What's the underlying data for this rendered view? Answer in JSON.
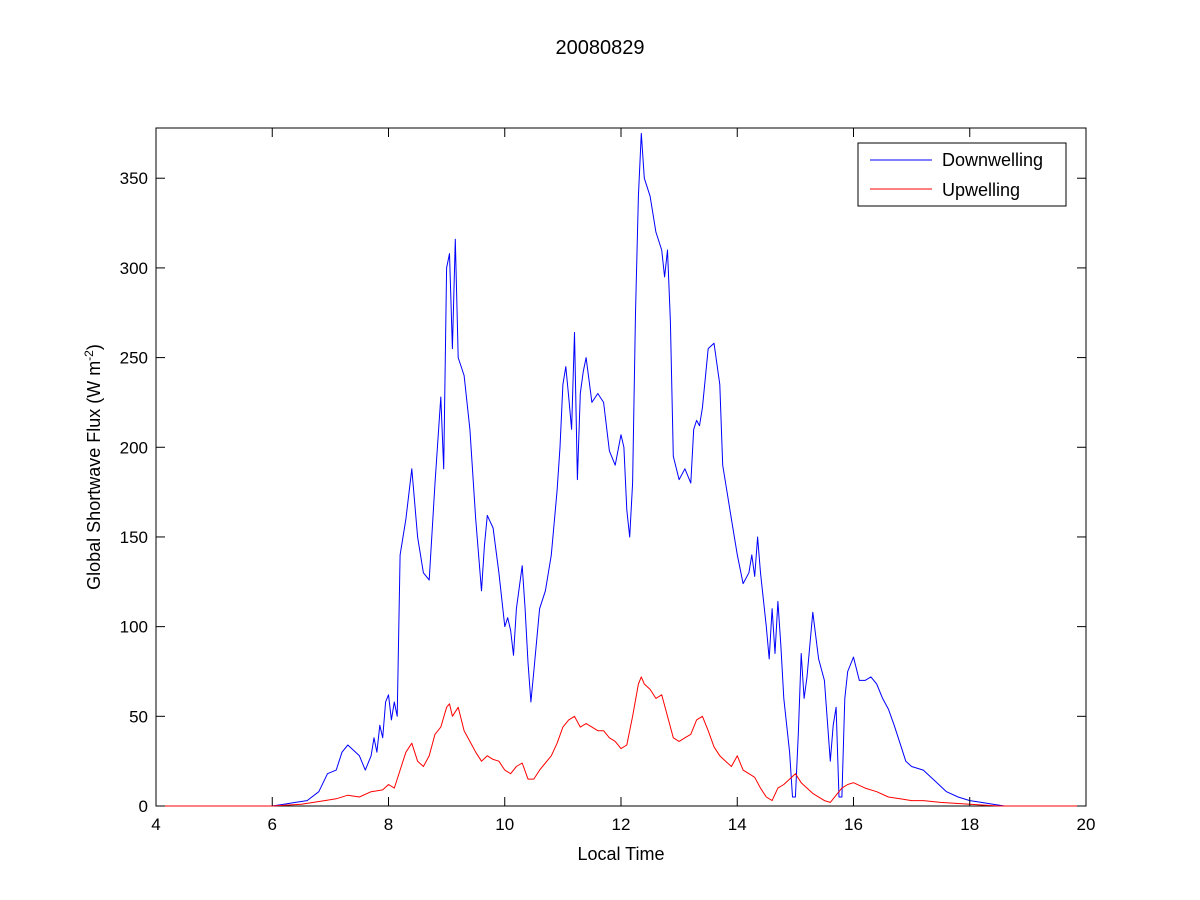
{
  "chart_data": {
    "type": "line",
    "title": "20080829",
    "xlabel": "Local Time",
    "ylabel": {
      "main": "Global Shortwave Flux (W m",
      "superscript": "-2",
      "close": ")"
    },
    "xlim": [
      4,
      20
    ],
    "ylim": [
      0,
      378
    ],
    "xticks": [
      4,
      6,
      8,
      10,
      12,
      14,
      16,
      18,
      20
    ],
    "yticks": [
      0,
      50,
      100,
      150,
      200,
      250,
      300,
      350
    ],
    "grid": false,
    "legend_position": "top-right",
    "series": [
      {
        "name": "Downwelling",
        "color": "#0000ff",
        "points": [
          [
            4.0,
            0
          ],
          [
            5.0,
            0
          ],
          [
            6.0,
            0
          ],
          [
            6.2,
            1
          ],
          [
            6.4,
            2
          ],
          [
            6.6,
            3
          ],
          [
            6.8,
            8
          ],
          [
            6.95,
            18
          ],
          [
            7.1,
            20
          ],
          [
            7.2,
            30
          ],
          [
            7.3,
            34
          ],
          [
            7.4,
            31
          ],
          [
            7.5,
            28
          ],
          [
            7.6,
            20
          ],
          [
            7.7,
            28
          ],
          [
            7.75,
            38
          ],
          [
            7.8,
            30
          ],
          [
            7.85,
            45
          ],
          [
            7.9,
            38
          ],
          [
            7.95,
            58
          ],
          [
            8.0,
            62
          ],
          [
            8.05,
            48
          ],
          [
            8.1,
            58
          ],
          [
            8.15,
            50
          ],
          [
            8.2,
            140
          ],
          [
            8.3,
            160
          ],
          [
            8.4,
            188
          ],
          [
            8.5,
            150
          ],
          [
            8.6,
            130
          ],
          [
            8.7,
            126
          ],
          [
            8.8,
            180
          ],
          [
            8.9,
            228
          ],
          [
            8.95,
            188
          ],
          [
            9.0,
            300
          ],
          [
            9.05,
            308
          ],
          [
            9.1,
            255
          ],
          [
            9.15,
            316
          ],
          [
            9.2,
            250
          ],
          [
            9.3,
            240
          ],
          [
            9.4,
            210
          ],
          [
            9.5,
            160
          ],
          [
            9.6,
            120
          ],
          [
            9.65,
            145
          ],
          [
            9.7,
            162
          ],
          [
            9.8,
            155
          ],
          [
            9.9,
            130
          ],
          [
            10.0,
            100
          ],
          [
            10.05,
            105
          ],
          [
            10.1,
            98
          ],
          [
            10.15,
            84
          ],
          [
            10.2,
            110
          ],
          [
            10.3,
            134
          ],
          [
            10.35,
            110
          ],
          [
            10.4,
            80
          ],
          [
            10.45,
            58
          ],
          [
            10.5,
            75
          ],
          [
            10.6,
            110
          ],
          [
            10.7,
            120
          ],
          [
            10.8,
            140
          ],
          [
            10.9,
            176
          ],
          [
            10.95,
            200
          ],
          [
            11.0,
            235
          ],
          [
            11.05,
            245
          ],
          [
            11.1,
            228
          ],
          [
            11.15,
            210
          ],
          [
            11.2,
            264
          ],
          [
            11.25,
            182
          ],
          [
            11.3,
            230
          ],
          [
            11.35,
            242
          ],
          [
            11.4,
            250
          ],
          [
            11.5,
            225
          ],
          [
            11.6,
            230
          ],
          [
            11.7,
            225
          ],
          [
            11.8,
            198
          ],
          [
            11.9,
            190
          ],
          [
            12.0,
            207
          ],
          [
            12.05,
            200
          ],
          [
            12.1,
            165
          ],
          [
            12.15,
            150
          ],
          [
            12.2,
            180
          ],
          [
            12.25,
            275
          ],
          [
            12.3,
            340
          ],
          [
            12.35,
            375
          ],
          [
            12.4,
            350
          ],
          [
            12.5,
            340
          ],
          [
            12.6,
            320
          ],
          [
            12.7,
            310
          ],
          [
            12.75,
            295
          ],
          [
            12.8,
            310
          ],
          [
            12.85,
            270
          ],
          [
            12.9,
            195
          ],
          [
            13.0,
            182
          ],
          [
            13.1,
            188
          ],
          [
            13.2,
            180
          ],
          [
            13.25,
            210
          ],
          [
            13.3,
            215
          ],
          [
            13.35,
            212
          ],
          [
            13.4,
            222
          ],
          [
            13.5,
            255
          ],
          [
            13.6,
            258
          ],
          [
            13.7,
            235
          ],
          [
            13.75,
            190
          ],
          [
            13.8,
            180
          ],
          [
            13.9,
            160
          ],
          [
            14.0,
            140
          ],
          [
            14.1,
            124
          ],
          [
            14.2,
            130
          ],
          [
            14.25,
            140
          ],
          [
            14.3,
            128
          ],
          [
            14.35,
            150
          ],
          [
            14.4,
            130
          ],
          [
            14.5,
            100
          ],
          [
            14.55,
            82
          ],
          [
            14.6,
            110
          ],
          [
            14.65,
            85
          ],
          [
            14.7,
            114
          ],
          [
            14.75,
            90
          ],
          [
            14.8,
            60
          ],
          [
            14.9,
            30
          ],
          [
            14.95,
            5
          ],
          [
            15.0,
            5
          ],
          [
            15.05,
            40
          ],
          [
            15.1,
            85
          ],
          [
            15.15,
            60
          ],
          [
            15.2,
            72
          ],
          [
            15.3,
            108
          ],
          [
            15.4,
            82
          ],
          [
            15.5,
            70
          ],
          [
            15.6,
            25
          ],
          [
            15.65,
            45
          ],
          [
            15.7,
            55
          ],
          [
            15.75,
            5
          ],
          [
            15.8,
            5
          ],
          [
            15.85,
            60
          ],
          [
            15.9,
            75
          ],
          [
            16.0,
            83
          ],
          [
            16.1,
            70
          ],
          [
            16.2,
            70
          ],
          [
            16.3,
            72
          ],
          [
            16.4,
            68
          ],
          [
            16.5,
            60
          ],
          [
            16.6,
            54
          ],
          [
            16.7,
            45
          ],
          [
            16.8,
            35
          ],
          [
            16.9,
            25
          ],
          [
            17.0,
            22
          ],
          [
            17.2,
            20
          ],
          [
            17.4,
            14
          ],
          [
            17.6,
            8
          ],
          [
            17.8,
            5
          ],
          [
            18.0,
            3
          ],
          [
            18.2,
            2
          ],
          [
            18.4,
            1
          ],
          [
            18.6,
            0
          ],
          [
            20.0,
            0
          ]
        ]
      },
      {
        "name": "Upwelling",
        "color": "#ff0000",
        "points": [
          [
            4.0,
            0
          ],
          [
            5.0,
            0
          ],
          [
            6.0,
            0
          ],
          [
            6.5,
            1
          ],
          [
            6.9,
            3
          ],
          [
            7.1,
            4
          ],
          [
            7.3,
            6
          ],
          [
            7.5,
            5
          ],
          [
            7.7,
            8
          ],
          [
            7.9,
            9
          ],
          [
            8.0,
            12
          ],
          [
            8.1,
            10
          ],
          [
            8.2,
            20
          ],
          [
            8.3,
            30
          ],
          [
            8.4,
            35
          ],
          [
            8.5,
            25
          ],
          [
            8.6,
            22
          ],
          [
            8.7,
            28
          ],
          [
            8.8,
            40
          ],
          [
            8.9,
            44
          ],
          [
            9.0,
            55
          ],
          [
            9.05,
            57
          ],
          [
            9.1,
            50
          ],
          [
            9.2,
            55
          ],
          [
            9.3,
            42
          ],
          [
            9.4,
            36
          ],
          [
            9.5,
            30
          ],
          [
            9.6,
            25
          ],
          [
            9.7,
            28
          ],
          [
            9.8,
            26
          ],
          [
            9.9,
            25
          ],
          [
            10.0,
            20
          ],
          [
            10.1,
            18
          ],
          [
            10.2,
            22
          ],
          [
            10.3,
            24
          ],
          [
            10.4,
            15
          ],
          [
            10.5,
            15
          ],
          [
            10.6,
            20
          ],
          [
            10.7,
            24
          ],
          [
            10.8,
            28
          ],
          [
            10.9,
            35
          ],
          [
            11.0,
            44
          ],
          [
            11.1,
            48
          ],
          [
            11.2,
            50
          ],
          [
            11.3,
            44
          ],
          [
            11.4,
            46
          ],
          [
            11.5,
            44
          ],
          [
            11.6,
            42
          ],
          [
            11.7,
            42
          ],
          [
            11.8,
            38
          ],
          [
            11.9,
            36
          ],
          [
            12.0,
            32
          ],
          [
            12.1,
            34
          ],
          [
            12.2,
            50
          ],
          [
            12.3,
            68
          ],
          [
            12.35,
            72
          ],
          [
            12.4,
            68
          ],
          [
            12.5,
            65
          ],
          [
            12.6,
            60
          ],
          [
            12.7,
            62
          ],
          [
            12.8,
            50
          ],
          [
            12.9,
            38
          ],
          [
            13.0,
            36
          ],
          [
            13.1,
            38
          ],
          [
            13.2,
            40
          ],
          [
            13.3,
            48
          ],
          [
            13.4,
            50
          ],
          [
            13.5,
            42
          ],
          [
            13.6,
            33
          ],
          [
            13.7,
            28
          ],
          [
            13.8,
            25
          ],
          [
            13.9,
            22
          ],
          [
            14.0,
            28
          ],
          [
            14.1,
            20
          ],
          [
            14.2,
            18
          ],
          [
            14.3,
            16
          ],
          [
            14.4,
            10
          ],
          [
            14.5,
            5
          ],
          [
            14.6,
            3
          ],
          [
            14.7,
            10
          ],
          [
            14.8,
            12
          ],
          [
            14.9,
            15
          ],
          [
            15.0,
            18
          ],
          [
            15.1,
            13
          ],
          [
            15.2,
            10
          ],
          [
            15.3,
            7
          ],
          [
            15.5,
            3
          ],
          [
            15.6,
            2
          ],
          [
            15.7,
            6
          ],
          [
            15.8,
            10
          ],
          [
            15.9,
            12
          ],
          [
            16.0,
            13
          ],
          [
            16.2,
            10
          ],
          [
            16.4,
            8
          ],
          [
            16.6,
            5
          ],
          [
            16.8,
            4
          ],
          [
            17.0,
            3
          ],
          [
            17.2,
            3
          ],
          [
            17.5,
            2
          ],
          [
            18.0,
            1
          ],
          [
            18.5,
            0
          ],
          [
            20.0,
            0
          ]
        ]
      }
    ]
  }
}
